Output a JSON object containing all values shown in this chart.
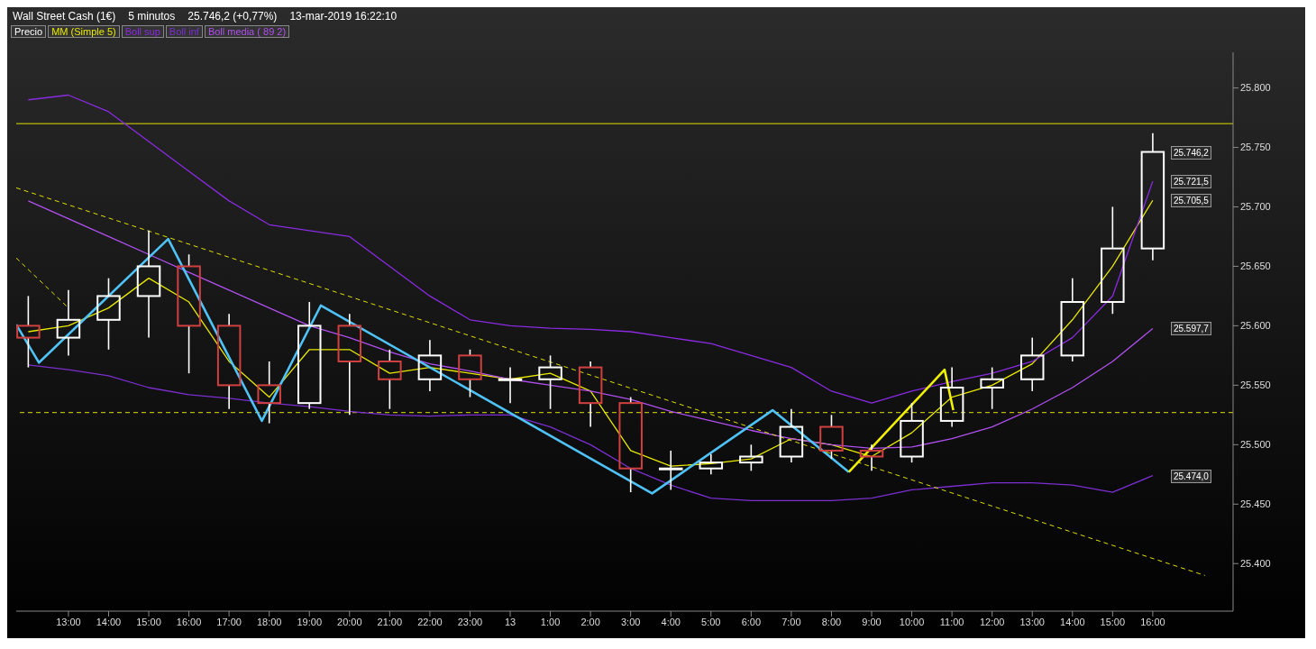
{
  "chart_data": {
    "type": "candlestick",
    "title": "Wall Street Cash (1€)",
    "subtitle": "5 minutos",
    "annotations": [
      "25.746,2 (+0,77%)",
      "13-mar-2019 16:22:10",
      {
        "text": "25.746,2",
        "x": "2019-03-13T16:00",
        "y": 25746.2
      },
      {
        "text": "25.721,5",
        "x": "2019-03-13T16:00",
        "y": 25721.5
      },
      {
        "text": "25.705,5",
        "x": "2019-03-13T16:00",
        "y": 25705.5
      },
      {
        "text": "25.597,7",
        "x": "2019-03-13T16:00",
        "y": 25597.7
      },
      {
        "text": "25.474,0",
        "x": "2019-03-13T16:00",
        "y": 25474.0
      }
    ],
    "xlim": [
      "2019-03-12T11:42",
      "2019-03-13T18:00"
    ],
    "xticks": [
      {
        "value": "2019-03-12T13:00",
        "label": "13:00"
      },
      {
        "value": "2019-03-12T14:00",
        "label": "14:00"
      },
      {
        "value": "2019-03-12T15:00",
        "label": "15:00"
      },
      {
        "value": "2019-03-12T16:00",
        "label": "16:00"
      },
      {
        "value": "2019-03-12T17:00",
        "label": "17:00"
      },
      {
        "value": "2019-03-12T18:00",
        "label": "18:00"
      },
      {
        "value": "2019-03-12T19:00",
        "label": "19:00"
      },
      {
        "value": "2019-03-12T20:00",
        "label": "20:00"
      },
      {
        "value": "2019-03-12T21:00",
        "label": "21:00"
      },
      {
        "value": "2019-03-12T22:00",
        "label": "22:00"
      },
      {
        "value": "2019-03-12T23:00",
        "label": "23:00"
      },
      {
        "value": "2019-03-13T00:00",
        "label": "13"
      },
      {
        "value": "2019-03-13T01:00",
        "label": "1:00"
      },
      {
        "value": "2019-03-13T02:00",
        "label": "2:00"
      },
      {
        "value": "2019-03-13T03:00",
        "label": "3:00"
      },
      {
        "value": "2019-03-13T04:00",
        "label": "4:00"
      },
      {
        "value": "2019-03-13T05:00",
        "label": "5:00"
      },
      {
        "value": "2019-03-13T06:00",
        "label": "6:00"
      },
      {
        "value": "2019-03-13T07:00",
        "label": "7:00"
      },
      {
        "value": "2019-03-13T08:00",
        "label": "8:00"
      },
      {
        "value": "2019-03-13T09:00",
        "label": "9:00"
      },
      {
        "value": "2019-03-13T10:00",
        "label": "10:00"
      },
      {
        "value": "2019-03-13T11:00",
        "label": "11:00"
      },
      {
        "value": "2019-03-13T12:00",
        "label": "12:00"
      },
      {
        "value": "2019-03-13T13:00",
        "label": "13:00"
      },
      {
        "value": "2019-03-13T14:00",
        "label": "14:00"
      },
      {
        "value": "2019-03-13T15:00",
        "label": "15:00"
      },
      {
        "value": "2019-03-13T16:00",
        "label": "16:00"
      }
    ],
    "x": [
      "2019-03-12T12:00",
      "2019-03-12T13:00",
      "2019-03-12T14:00",
      "2019-03-12T15:00",
      "2019-03-12T16:00",
      "2019-03-12T17:00",
      "2019-03-12T18:00",
      "2019-03-12T19:00",
      "2019-03-12T20:00",
      "2019-03-12T21:00",
      "2019-03-12T22:00",
      "2019-03-12T23:00",
      "2019-03-13T00:00",
      "2019-03-13T01:00",
      "2019-03-13T02:00",
      "2019-03-13T03:00",
      "2019-03-13T04:00",
      "2019-03-13T05:00",
      "2019-03-13T06:00",
      "2019-03-13T07:00",
      "2019-03-13T08:00",
      "2019-03-13T09:00",
      "2019-03-13T10:00",
      "2019-03-13T11:00",
      "2019-03-13T12:00",
      "2019-03-13T13:00",
      "2019-03-13T14:00",
      "2019-03-13T15:00",
      "2019-03-13T16:00"
    ],
    "ylim": [
      25360,
      25830
    ],
    "yticks": [
      {
        "value": 25400,
        "label": "25.400"
      },
      {
        "value": 25450,
        "label": "25.450"
      },
      {
        "value": 25500,
        "label": "25.500"
      },
      {
        "value": 25550,
        "label": "25.550"
      },
      {
        "value": 25600,
        "label": "25.600"
      },
      {
        "value": 25650,
        "label": "25.650"
      },
      {
        "value": 25700,
        "label": "25.700"
      },
      {
        "value": 25750,
        "label": "25.750"
      },
      {
        "value": 25800,
        "label": "25.800"
      }
    ],
    "legend": "top left",
    "marker": "none",
    "ref_lines": [
      {
        "axis": "y",
        "value": 25770,
        "color": "#e0e000",
        "line_style": "solid"
      },
      {
        "axis": "y",
        "value": 25527,
        "color": "#e0e000",
        "line_style": "dashed"
      }
    ],
    "series": [
      {
        "name": "Precio",
        "color": "#ffffff",
        "ohlc": [
          [
            25600,
            25625,
            25565,
            25590
          ],
          [
            25590,
            25630,
            25575,
            25605
          ],
          [
            25605,
            25640,
            25580,
            25625
          ],
          [
            25625,
            25680,
            25590,
            25650
          ],
          [
            25650,
            25660,
            25560,
            25600
          ],
          [
            25600,
            25610,
            25530,
            25550
          ],
          [
            25550,
            25570,
            25518,
            25535
          ],
          [
            25535,
            25620,
            25530,
            25600
          ],
          [
            25600,
            25610,
            25525,
            25570
          ],
          [
            25570,
            25580,
            25530,
            25555
          ],
          [
            25555,
            25588,
            25545,
            25575
          ],
          [
            25575,
            25580,
            25540,
            25555
          ],
          [
            25555,
            25565,
            25535,
            25555
          ],
          [
            25555,
            25575,
            25530,
            25565
          ],
          [
            25565,
            25570,
            25515,
            25535
          ],
          [
            25535,
            25540,
            25460,
            25480
          ],
          [
            25480,
            25495,
            25462,
            25480
          ],
          [
            25480,
            25492,
            25475,
            25485
          ],
          [
            25485,
            25500,
            25478,
            25490
          ],
          [
            25490,
            25530,
            25485,
            25515
          ],
          [
            25515,
            25525,
            25488,
            25495
          ],
          [
            25495,
            25500,
            25478,
            25490
          ],
          [
            25490,
            25535,
            25485,
            25520
          ],
          [
            25520,
            25565,
            25515,
            25548
          ],
          [
            25548,
            25565,
            25530,
            25555
          ],
          [
            25555,
            25590,
            25545,
            25575
          ],
          [
            25575,
            25640,
            25570,
            25620
          ],
          [
            25620,
            25700,
            25610,
            25665
          ],
          [
            25665,
            25762,
            25655,
            25746.2
          ]
        ],
        "colors": [
          "#d04040",
          "#ffffff",
          "#ffffff",
          "#ffffff",
          "#d04040",
          "#d04040",
          "#d04040",
          "#ffffff",
          "#d04040",
          "#d04040",
          "#ffffff",
          "#d04040",
          "#ffffff",
          "#ffffff",
          "#d04040",
          "#d04040",
          "#ffffff",
          "#ffffff",
          "#ffffff",
          "#ffffff",
          "#d04040",
          "#d04040",
          "#ffffff",
          "#ffffff",
          "#ffffff",
          "#ffffff",
          "#ffffff",
          "#ffffff",
          "#ffffff"
        ]
      },
      {
        "type": "line",
        "name": "MM (Simple 5)",
        "color": "#e8e800",
        "line_style": "solid",
        "values": [
          25595,
          25600,
          25615,
          25640,
          25620,
          25570,
          25540,
          25580,
          25580,
          25560,
          25565,
          25560,
          25555,
          25560,
          25545,
          25495,
          25482,
          25484,
          25488,
          25505,
          25500,
          25490,
          25510,
          25540,
          25550,
          25568,
          25605,
          25650,
          25705.5
        ]
      },
      {
        "type": "line",
        "name": "Boll sup",
        "color": "#8a2be2",
        "line_style": "solid",
        "values": [
          25790,
          25794,
          25780,
          25755,
          25730,
          25705,
          25685,
          25680,
          25675,
          25650,
          25625,
          25605,
          25600,
          25598,
          25597,
          25595,
          25590,
          25585,
          25575,
          25565,
          25545,
          25535,
          25545,
          25553,
          25560,
          25570,
          25590,
          25625,
          25721.5
        ]
      },
      {
        "type": "line",
        "name": "Boll inf",
        "color": "#7b2fd0",
        "line_style": "solid",
        "values": [
          25567,
          25563,
          25558,
          25548,
          25542,
          25539,
          25535,
          25532,
          25528,
          25525,
          25524,
          25525,
          25525,
          25515,
          25500,
          25480,
          25466,
          25455,
          25453,
          25453,
          25453,
          25455,
          25462,
          25465,
          25468,
          25468,
          25466,
          25460,
          25474.0
        ]
      },
      {
        "type": "line",
        "name": "Boll media ( 89 2)",
        "color": "#b050f0",
        "line_style": "solid",
        "values": [
          25705,
          25690,
          25675,
          25660,
          25645,
          25630,
          25615,
          25600,
          25590,
          25578,
          25568,
          25562,
          25555,
          25550,
          25545,
          25538,
          25528,
          25520,
          25512,
          25505,
          25500,
          25497,
          25498,
          25505,
          25515,
          25530,
          25548,
          25570,
          25597.7
        ]
      },
      {
        "type": "line",
        "color": "#4fc3f7",
        "line_style": "solid",
        "x": [
          "2019-03-12T11:42",
          "2019-03-12T12:16",
          "2019-03-12T15:29",
          "2019-03-12T17:49",
          "2019-03-12T19:17",
          "2019-03-13T03:32",
          "2019-03-13T06:32",
          "2019-03-13T08:26"
        ],
        "values": [
          25601,
          25569,
          25673,
          25520,
          25617,
          25459,
          25529,
          25477
        ]
      },
      {
        "type": "line",
        "color": "#f0f000",
        "line_style": "solid",
        "x": [
          "2019-03-13T08:26",
          "2019-03-13T10:49",
          "2019-03-13T11:02"
        ],
        "values": [
          25477,
          25563,
          25529
        ]
      },
      {
        "type": "line",
        "color": "#e0e000",
        "line_style": "dashed",
        "x": [
          "2019-03-12T11:42",
          "2019-03-13T17:18"
        ],
        "values": [
          25716,
          25390
        ]
      },
      {
        "type": "line",
        "color": "#e0e000",
        "line_style": "dashed",
        "x": [
          "2019-03-12T11:42",
          "2019-03-12T13:00"
        ],
        "values": [
          25657,
          25615
        ]
      }
    ]
  }
}
